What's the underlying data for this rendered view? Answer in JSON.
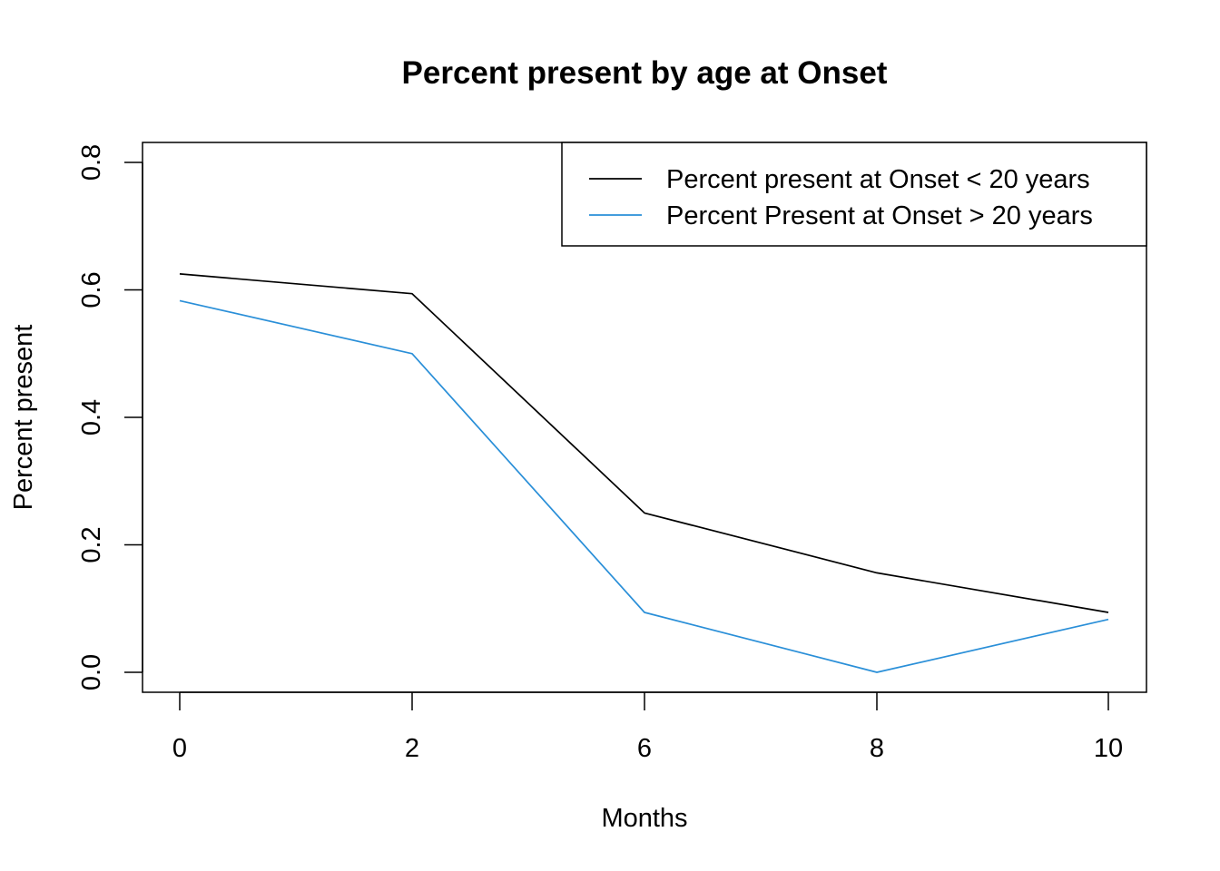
{
  "chart_data": {
    "type": "line",
    "title": "Percent present by age at Onset",
    "xlabel": "Months",
    "ylabel": "Percent present",
    "categories": [
      "0",
      "2",
      "6",
      "8",
      "10"
    ],
    "yticks": [
      "0.0",
      "0.2",
      "0.4",
      "0.6",
      "0.8"
    ],
    "ylim": [
      0,
      0.8
    ],
    "grid": false,
    "legend_position": "top-right",
    "series": [
      {
        "name": "Percent present at Onset < 20 years",
        "color": "#000000",
        "values": [
          0.625,
          0.594,
          0.25,
          0.156,
          0.094
        ]
      },
      {
        "name": "Percent Present at Onset > 20 years",
        "color": "#2a8fd8",
        "values": [
          0.583,
          0.5,
          0.094,
          0.0,
          0.083
        ]
      }
    ]
  }
}
